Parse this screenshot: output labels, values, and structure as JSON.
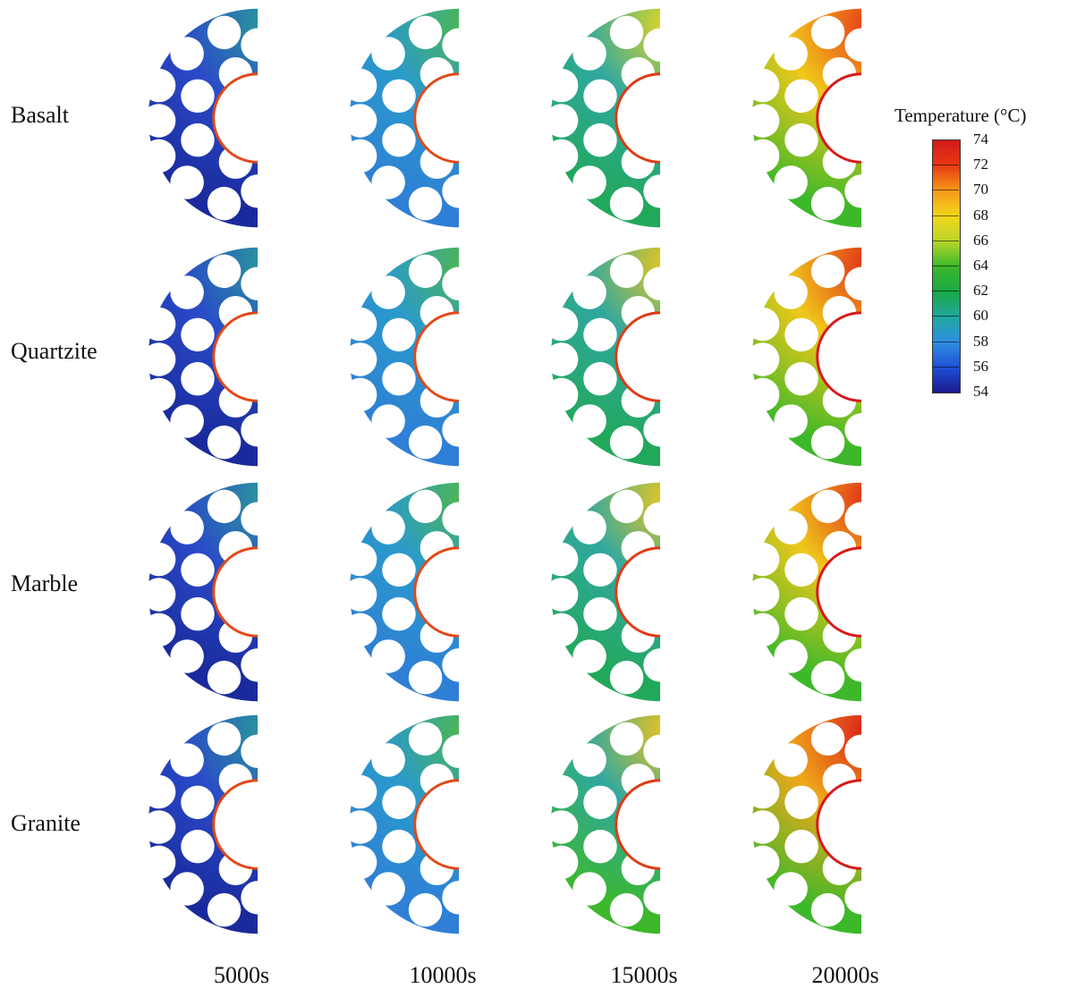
{
  "rows": [
    {
      "label": "Basalt"
    },
    {
      "label": "Quartzite"
    },
    {
      "label": "Marble"
    },
    {
      "label": "Granite"
    }
  ],
  "columns": [
    {
      "label": "5000s"
    },
    {
      "label": "10000s"
    },
    {
      "label": "15000s"
    },
    {
      "label": "20000s"
    }
  ],
  "colorbar": {
    "title": "Temperature (°C)",
    "ticks": [
      "74",
      "72",
      "70",
      "68",
      "66",
      "64",
      "62",
      "60",
      "58",
      "56",
      "54"
    ],
    "min": 54,
    "max": 74,
    "stops": [
      "#1a1a8c",
      "#1f4fd6",
      "#2f8fe0",
      "#21a8a0",
      "#1aa845",
      "#3cb82a",
      "#b9d52a",
      "#f2d61a",
      "#f59a1a",
      "#e83a14",
      "#d41a1a"
    ]
  },
  "panels": [
    [
      {
        "base": "#1a2a9c",
        "rim": "#2a4ac8",
        "hot": "#2a9a9a",
        "edge": "#e04a1a"
      },
      {
        "base": "#2f7fd6",
        "rim": "#2a9acb",
        "hot": "#4fb84a",
        "edge": "#e04a1a"
      },
      {
        "base": "#22a85a",
        "rim": "#30a8a0",
        "hot": "#e8d81f",
        "edge": "#e03a14"
      },
      {
        "base": "#3cb82a",
        "rim": "#f0c81a",
        "hot": "#e8381a",
        "edge": "#d81a1a"
      }
    ],
    [
      {
        "base": "#1a2a9c",
        "rim": "#2a4ac8",
        "hot": "#2a9a9a",
        "edge": "#e04a1a"
      },
      {
        "base": "#2f7fd6",
        "rim": "#2a9acb",
        "hot": "#4fb84a",
        "edge": "#e04a1a"
      },
      {
        "base": "#22a85a",
        "rim": "#30a8a0",
        "hot": "#f0c81a",
        "edge": "#e03a14"
      },
      {
        "base": "#3cb82a",
        "rim": "#f0c81a",
        "hot": "#e02a18",
        "edge": "#d81a1a"
      }
    ],
    [
      {
        "base": "#1a2a9c",
        "rim": "#2a4ac8",
        "hot": "#2a9a9a",
        "edge": "#e04a1a"
      },
      {
        "base": "#2f7fd6",
        "rim": "#2a9acb",
        "hot": "#4fb84a",
        "edge": "#e04a1a"
      },
      {
        "base": "#22a85a",
        "rim": "#30a8a0",
        "hot": "#f0c81a",
        "edge": "#e03a14"
      },
      {
        "base": "#3cb82a",
        "rim": "#f0c81a",
        "hot": "#e02a18",
        "edge": "#d81a1a"
      }
    ],
    [
      {
        "base": "#1a2a9c",
        "rim": "#2a4ac8",
        "hot": "#2a9a9a",
        "edge": "#e04a1a"
      },
      {
        "base": "#2f7fd6",
        "rim": "#2a9acb",
        "hot": "#4fb84a",
        "edge": "#e04a1a"
      },
      {
        "base": "#3cb82a",
        "rim": "#30a8a0",
        "hot": "#f2c41a",
        "edge": "#e03a14"
      },
      {
        "base": "#3cb82a",
        "rim": "#f0a81a",
        "hot": "#d81a1a",
        "edge": "#d81a1a"
      }
    ]
  ]
}
